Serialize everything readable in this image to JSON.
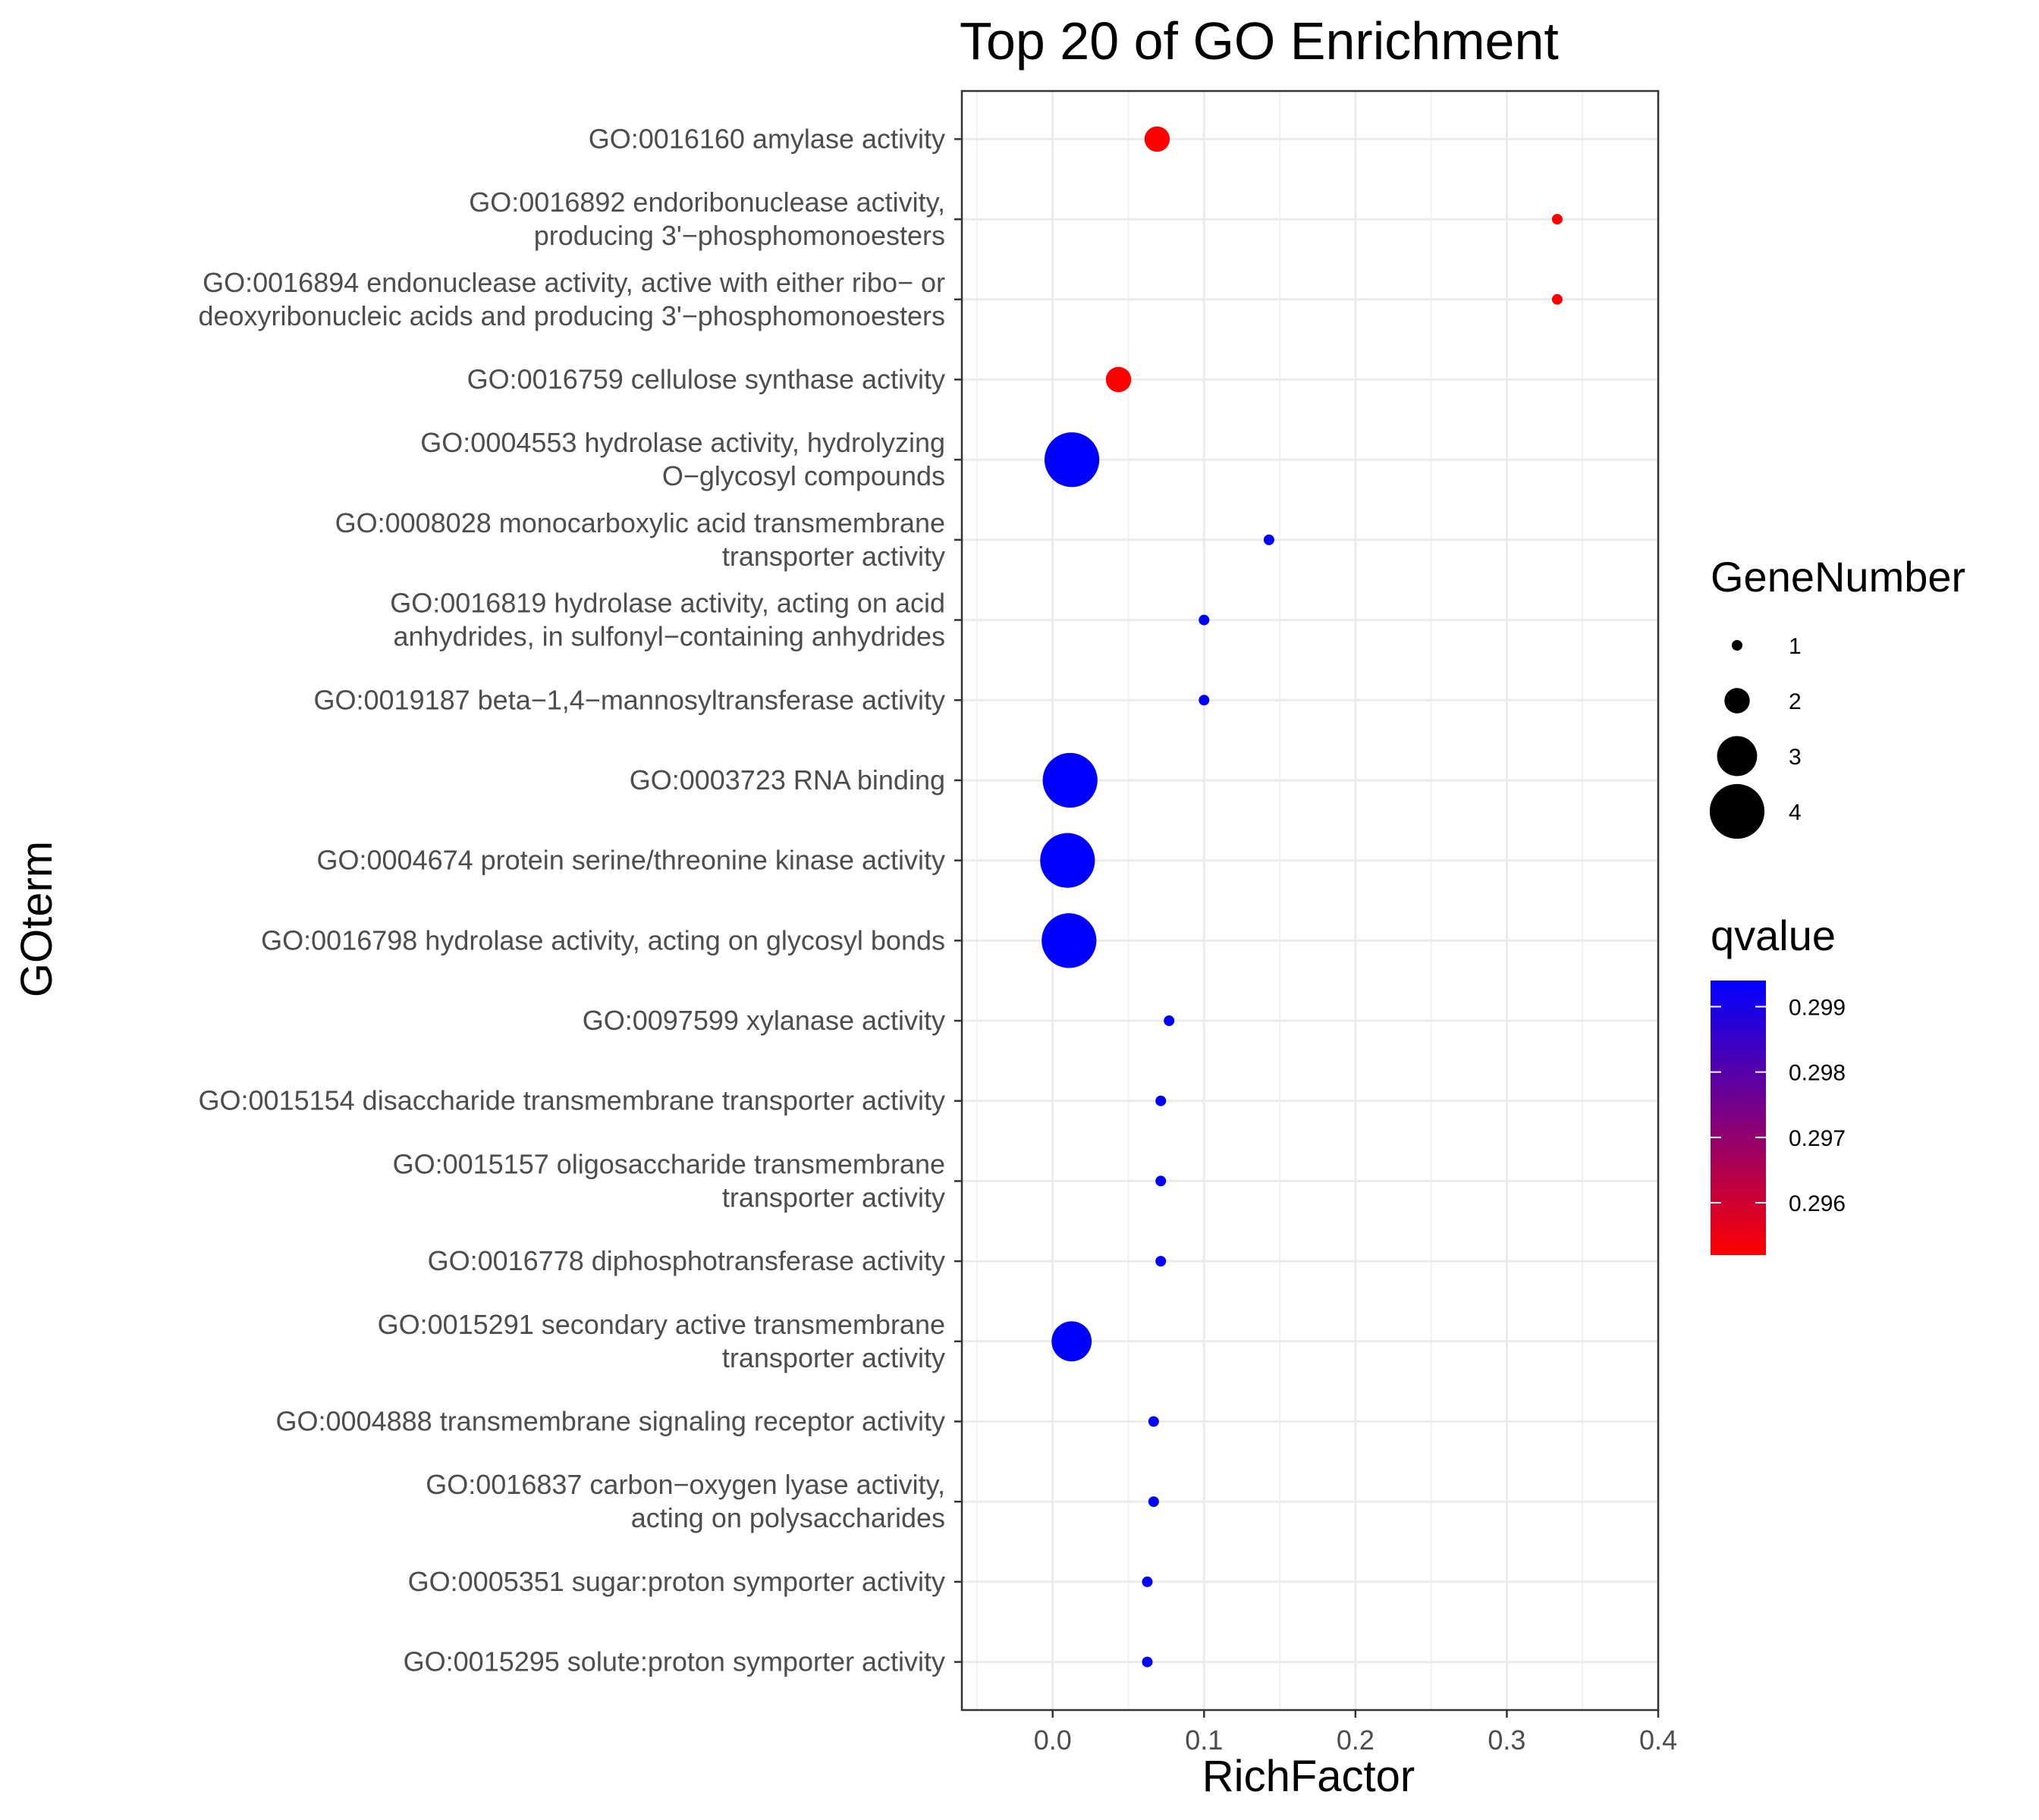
{
  "chart_data": {
    "type": "scatter",
    "title": "Top 20 of GO Enrichment",
    "xlabel": "RichFactor",
    "ylabel": "GOterm",
    "xlim": [
      -0.06,
      0.4
    ],
    "x_ticks": [
      "0.0",
      "0.1",
      "0.2",
      "0.3",
      "0.4"
    ],
    "x_tick_values": [
      0.0,
      0.1,
      0.2,
      0.3,
      0.4
    ],
    "grid": true,
    "terms": [
      {
        "label": [
          "GO:0016160 amylase activity"
        ],
        "x": 0.069,
        "size": 2,
        "qvalue": 0.2952
      },
      {
        "label": [
          "GO:0016892 endoribonuclease activity,",
          "producing 3'−phosphomonoesters"
        ],
        "x": 0.3333,
        "size": 1,
        "qvalue": 0.2952
      },
      {
        "label": [
          "GO:0016894 endonuclease activity, active with either ribo− or",
          "deoxyribonucleic acids and producing 3'−phosphomonoesters"
        ],
        "x": 0.3333,
        "size": 1,
        "qvalue": 0.2952
      },
      {
        "label": [
          "GO:0016759 cellulose synthase activity"
        ],
        "x": 0.0435,
        "size": 2,
        "qvalue": 0.2952
      },
      {
        "label": [
          "GO:0004553 hydrolase activity, hydrolyzing",
          "O−glycosyl compounds"
        ],
        "x": 0.0127,
        "size": 4,
        "qvalue": 0.2994
      },
      {
        "label": [
          "GO:0008028 monocarboxylic acid transmembrane",
          "transporter activity"
        ],
        "x": 0.1429,
        "size": 1,
        "qvalue": 0.2994
      },
      {
        "label": [
          "GO:0016819 hydrolase activity, acting on acid",
          "anhydrides, in sulfonyl−containing anhydrides"
        ],
        "x": 0.1,
        "size": 1,
        "qvalue": 0.2994
      },
      {
        "label": [
          "GO:0019187 beta−1,4−mannosyltransferase activity"
        ],
        "x": 0.1,
        "size": 1,
        "qvalue": 0.2994
      },
      {
        "label": [
          "GO:0003723 RNA binding"
        ],
        "x": 0.0115,
        "size": 4,
        "qvalue": 0.2994
      },
      {
        "label": [
          "GO:0004674 protein serine/threonine kinase activity"
        ],
        "x": 0.0098,
        "size": 4,
        "qvalue": 0.2994
      },
      {
        "label": [
          "GO:0016798 hydrolase activity, acting on glycosyl bonds"
        ],
        "x": 0.0108,
        "size": 4,
        "qvalue": 0.2994
      },
      {
        "label": [
          "GO:0097599 xylanase activity"
        ],
        "x": 0.0769,
        "size": 1,
        "qvalue": 0.2994
      },
      {
        "label": [
          "GO:0015154 disaccharide transmembrane transporter activity"
        ],
        "x": 0.0714,
        "size": 1,
        "qvalue": 0.2994
      },
      {
        "label": [
          "GO:0015157 oligosaccharide transmembrane",
          "transporter activity"
        ],
        "x": 0.0714,
        "size": 1,
        "qvalue": 0.2994
      },
      {
        "label": [
          "GO:0016778 diphosphotransferase activity"
        ],
        "x": 0.0714,
        "size": 1,
        "qvalue": 0.2994
      },
      {
        "label": [
          "GO:0015291 secondary active transmembrane",
          "transporter activity"
        ],
        "x": 0.0125,
        "size": 3,
        "qvalue": 0.2994
      },
      {
        "label": [
          "GO:0004888 transmembrane signaling receptor activity"
        ],
        "x": 0.0667,
        "size": 1,
        "qvalue": 0.2994
      },
      {
        "label": [
          "GO:0016837 carbon−oxygen lyase activity,",
          "acting on polysaccharides"
        ],
        "x": 0.0667,
        "size": 1,
        "qvalue": 0.2994
      },
      {
        "label": [
          "GO:0005351 sugar:proton symporter activity"
        ],
        "x": 0.0625,
        "size": 1,
        "qvalue": 0.2994
      },
      {
        "label": [
          "GO:0015295 solute:proton symporter activity"
        ],
        "x": 0.0625,
        "size": 1,
        "qvalue": 0.2994
      }
    ],
    "legend": {
      "size_title": "GeneNumber",
      "size_levels": [
        1,
        2,
        3,
        4
      ],
      "size_labels": [
        "1",
        "2",
        "3",
        "4"
      ],
      "color_title": "qvalue",
      "color_low": "#ff0000",
      "color_high": "#0000ff",
      "color_range": [
        0.2952,
        0.2994
      ],
      "color_ticks": [
        0.296,
        0.297,
        0.298,
        0.299
      ],
      "color_tick_labels": [
        "0.296",
        "0.297",
        "0.298",
        "0.299"
      ]
    }
  }
}
